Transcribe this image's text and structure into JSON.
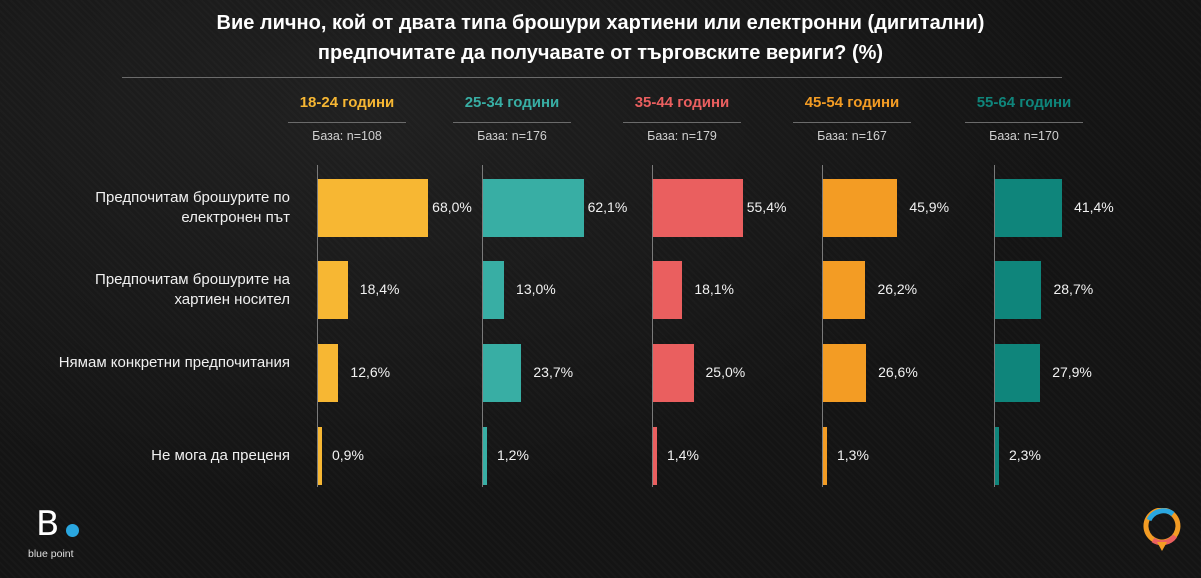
{
  "title": {
    "line1": "Вие лично, кой от двата типа брошури хартиени или електронни (дигитални)",
    "line2": "предпочитате да получавате от търговските вериги? (%)"
  },
  "rows": [
    {
      "label": "Предпочитам брошурите по електронен път"
    },
    {
      "label": "Предпочитам брошурите на хартиен носител"
    },
    {
      "label": "Нямам конкретни предпочитания"
    },
    {
      "label": "Не мога да преценя"
    }
  ],
  "groups": [
    {
      "label": "18-24 години",
      "base": "База: n=108",
      "color": "#f7b733",
      "values": [
        "68,0%",
        "18,4%",
        "12,6%",
        "0,9%"
      ]
    },
    {
      "label": "25-34 години",
      "base": "База: n=176",
      "color": "#38aea4",
      "values": [
        "62,1%",
        "13,0%",
        "23,7%",
        "1,2%"
      ]
    },
    {
      "label": "35-44 години",
      "base": "База: n=179",
      "color": "#ea5f5f",
      "values": [
        "55,4%",
        "18,1%",
        "25,0%",
        "1,4%"
      ]
    },
    {
      "label": "45-54 години",
      "base": "База: n=167",
      "color": "#f39c24",
      "values": [
        "45,9%",
        "26,2%",
        "26,6%",
        "1,3%"
      ]
    },
    {
      "label": "55-64 години",
      "base": "База: n=170",
      "color": "#0f857b",
      "values": [
        "41,4%",
        "28,7%",
        "27,9%",
        "2,3%"
      ]
    }
  ],
  "chart_data": {
    "type": "bar",
    "title": "Вие лично, кой от двата типа брошури хартиени или електронни (дигитални) предпочитате да получавате от търговските вериги? (%)",
    "categories": [
      "Предпочитам брошурите по електронен път",
      "Предпочитам брошурите на хартиен носител",
      "Нямам конкретни предпочитания",
      "Не мога да преценя"
    ],
    "series": [
      {
        "name": "18-24 години",
        "values": [
          68.0,
          18.4,
          12.6,
          0.9
        ]
      },
      {
        "name": "25-34 години",
        "values": [
          62.1,
          13.0,
          23.7,
          1.2
        ]
      },
      {
        "name": "35-44 години",
        "values": [
          55.4,
          18.1,
          25.0,
          1.4
        ]
      },
      {
        "name": "45-54 години",
        "values": [
          45.9,
          26.2,
          26.6,
          1.3
        ]
      },
      {
        "name": "55-64 години",
        "values": [
          41.4,
          28.7,
          27.9,
          2.3
        ]
      }
    ],
    "orientation": "horizontal",
    "xlim": [
      0,
      100
    ],
    "grid": false,
    "legend": "top"
  },
  "logo": {
    "brand": "blue point",
    "letter": "B"
  }
}
